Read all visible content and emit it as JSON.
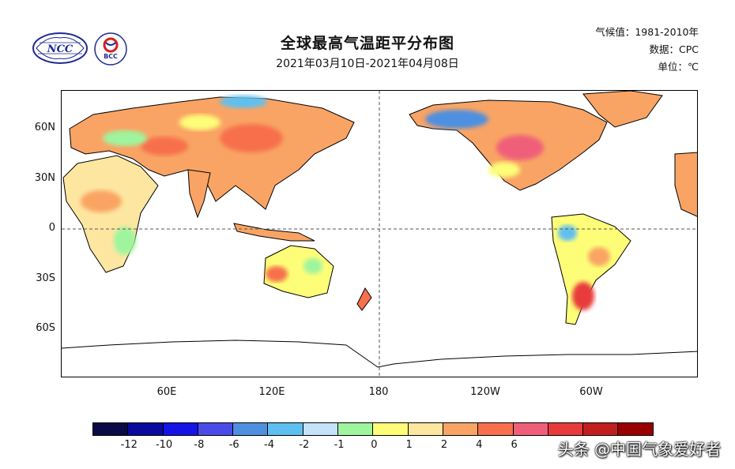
{
  "header": {
    "title": "全球最高气温距平分布图",
    "subtitle": "2021年03月10日-2021年04月08日"
  },
  "meta": {
    "climate": "气候值：1981-2010年",
    "source": "数据：CPC",
    "unit": "单位：℃"
  },
  "logos": {
    "ncc": "NCC",
    "bcc": "BCC"
  },
  "map": {
    "y_ticks": [
      "60N",
      "30N",
      "0",
      "30S",
      "60S"
    ],
    "x_ticks": [
      "60E",
      "120E",
      "180",
      "120W",
      "60W"
    ]
  },
  "legend": {
    "labels": [
      "-12",
      "-10",
      "-8",
      "-6",
      "-4",
      "-2",
      "-1",
      "0",
      "1",
      "2",
      "4",
      "6"
    ],
    "colors": [
      "#0a0a46",
      "#0a0a9e",
      "#1414e6",
      "#4b4bea",
      "#4e8fe0",
      "#5ec0f0",
      "#c4e2fa",
      "#9ef59e",
      "#fdfd78",
      "#fde6a0",
      "#f9a464",
      "#f76f4c",
      "#ef5f7a",
      "#e83a3a",
      "#c21e1e",
      "#990000"
    ]
  },
  "watermark": "头条 @中国气象爱好者"
}
